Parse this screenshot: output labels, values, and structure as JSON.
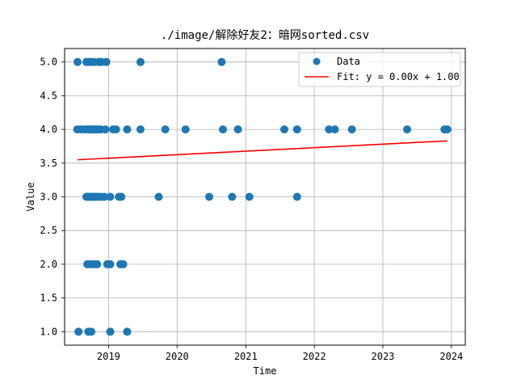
{
  "chart_data": {
    "type": "scatter",
    "title": "./image/解除好友2：暗网sorted.csv",
    "xlabel": "Time",
    "ylabel": "Value",
    "xlim": [
      "2018-05-12",
      "2024-03-15"
    ],
    "ylim": [
      0.8,
      5.2
    ],
    "x_ticks": [
      "2019",
      "2020",
      "2021",
      "2022",
      "2023",
      "2024"
    ],
    "y_ticks": [
      "1.0",
      "1.5",
      "2.0",
      "2.5",
      "3.0",
      "3.5",
      "4.0",
      "4.5",
      "5.0"
    ],
    "grid": true,
    "legend_placement": "top-right",
    "colors": {
      "data": "#1f77b4",
      "fit": "#ff0000"
    },
    "series": [
      {
        "name": "Data",
        "kind": "scatter",
        "points": [
          {
            "x": "2018-07-20",
            "y": 5
          },
          {
            "x": "2018-09-05",
            "y": 5
          },
          {
            "x": "2018-09-20",
            "y": 5
          },
          {
            "x": "2018-10-01",
            "y": 5
          },
          {
            "x": "2018-10-15",
            "y": 5
          },
          {
            "x": "2018-11-10",
            "y": 5
          },
          {
            "x": "2018-11-25",
            "y": 5
          },
          {
            "x": "2018-12-20",
            "y": 5
          },
          {
            "x": "2019-06-20",
            "y": 5
          },
          {
            "x": "2020-08-25",
            "y": 5
          },
          {
            "x": "2018-07-18",
            "y": 4
          },
          {
            "x": "2018-08-05",
            "y": 4
          },
          {
            "x": "2018-08-25",
            "y": 4
          },
          {
            "x": "2018-09-08",
            "y": 4
          },
          {
            "x": "2018-09-15",
            "y": 4
          },
          {
            "x": "2018-09-22",
            "y": 4
          },
          {
            "x": "2018-09-30",
            "y": 4
          },
          {
            "x": "2018-10-07",
            "y": 4
          },
          {
            "x": "2018-10-15",
            "y": 4
          },
          {
            "x": "2018-10-22",
            "y": 4
          },
          {
            "x": "2018-10-30",
            "y": 4
          },
          {
            "x": "2018-11-08",
            "y": 4
          },
          {
            "x": "2018-11-20",
            "y": 4
          },
          {
            "x": "2018-12-15",
            "y": 4
          },
          {
            "x": "2019-01-25",
            "y": 4
          },
          {
            "x": "2019-02-10",
            "y": 4
          },
          {
            "x": "2019-04-10",
            "y": 4
          },
          {
            "x": "2019-06-20",
            "y": 4
          },
          {
            "x": "2019-10-30",
            "y": 4
          },
          {
            "x": "2020-02-15",
            "y": 4
          },
          {
            "x": "2020-09-01",
            "y": 4
          },
          {
            "x": "2020-11-20",
            "y": 4
          },
          {
            "x": "2021-07-25",
            "y": 4
          },
          {
            "x": "2021-10-01",
            "y": 4
          },
          {
            "x": "2022-03-20",
            "y": 4
          },
          {
            "x": "2022-04-20",
            "y": 4
          },
          {
            "x": "2022-07-20",
            "y": 4
          },
          {
            "x": "2023-05-10",
            "y": 4
          },
          {
            "x": "2023-11-25",
            "y": 4
          },
          {
            "x": "2023-12-10",
            "y": 4
          },
          {
            "x": "2018-09-05",
            "y": 3
          },
          {
            "x": "2018-09-15",
            "y": 3
          },
          {
            "x": "2018-09-25",
            "y": 3
          },
          {
            "x": "2018-10-03",
            "y": 3
          },
          {
            "x": "2018-10-10",
            "y": 3
          },
          {
            "x": "2018-10-18",
            "y": 3
          },
          {
            "x": "2018-10-26",
            "y": 3
          },
          {
            "x": "2018-11-05",
            "y": 3
          },
          {
            "x": "2018-11-20",
            "y": 3
          },
          {
            "x": "2018-12-10",
            "y": 3
          },
          {
            "x": "2019-01-10",
            "y": 3
          },
          {
            "x": "2019-02-25",
            "y": 3
          },
          {
            "x": "2019-03-10",
            "y": 3
          },
          {
            "x": "2019-09-25",
            "y": 3
          },
          {
            "x": "2020-06-20",
            "y": 3
          },
          {
            "x": "2020-10-20",
            "y": 3
          },
          {
            "x": "2021-01-20",
            "y": 3
          },
          {
            "x": "2021-10-01",
            "y": 3
          },
          {
            "x": "2018-09-10",
            "y": 2
          },
          {
            "x": "2018-09-25",
            "y": 2
          },
          {
            "x": "2018-10-15",
            "y": 2
          },
          {
            "x": "2018-11-01",
            "y": 2
          },
          {
            "x": "2018-12-25",
            "y": 2
          },
          {
            "x": "2019-01-10",
            "y": 2
          },
          {
            "x": "2019-03-05",
            "y": 2
          },
          {
            "x": "2019-03-20",
            "y": 2
          },
          {
            "x": "2018-07-25",
            "y": 1
          },
          {
            "x": "2018-09-15",
            "y": 1
          },
          {
            "x": "2018-10-01",
            "y": 1
          },
          {
            "x": "2019-01-10",
            "y": 1
          },
          {
            "x": "2019-04-10",
            "y": 1
          }
        ]
      },
      {
        "name": "Fit: y = 0.00x + 1.00",
        "kind": "line",
        "points": [
          {
            "x": "2018-07-20",
            "y": 3.55
          },
          {
            "x": "2023-12-10",
            "y": 3.83
          }
        ]
      }
    ]
  }
}
